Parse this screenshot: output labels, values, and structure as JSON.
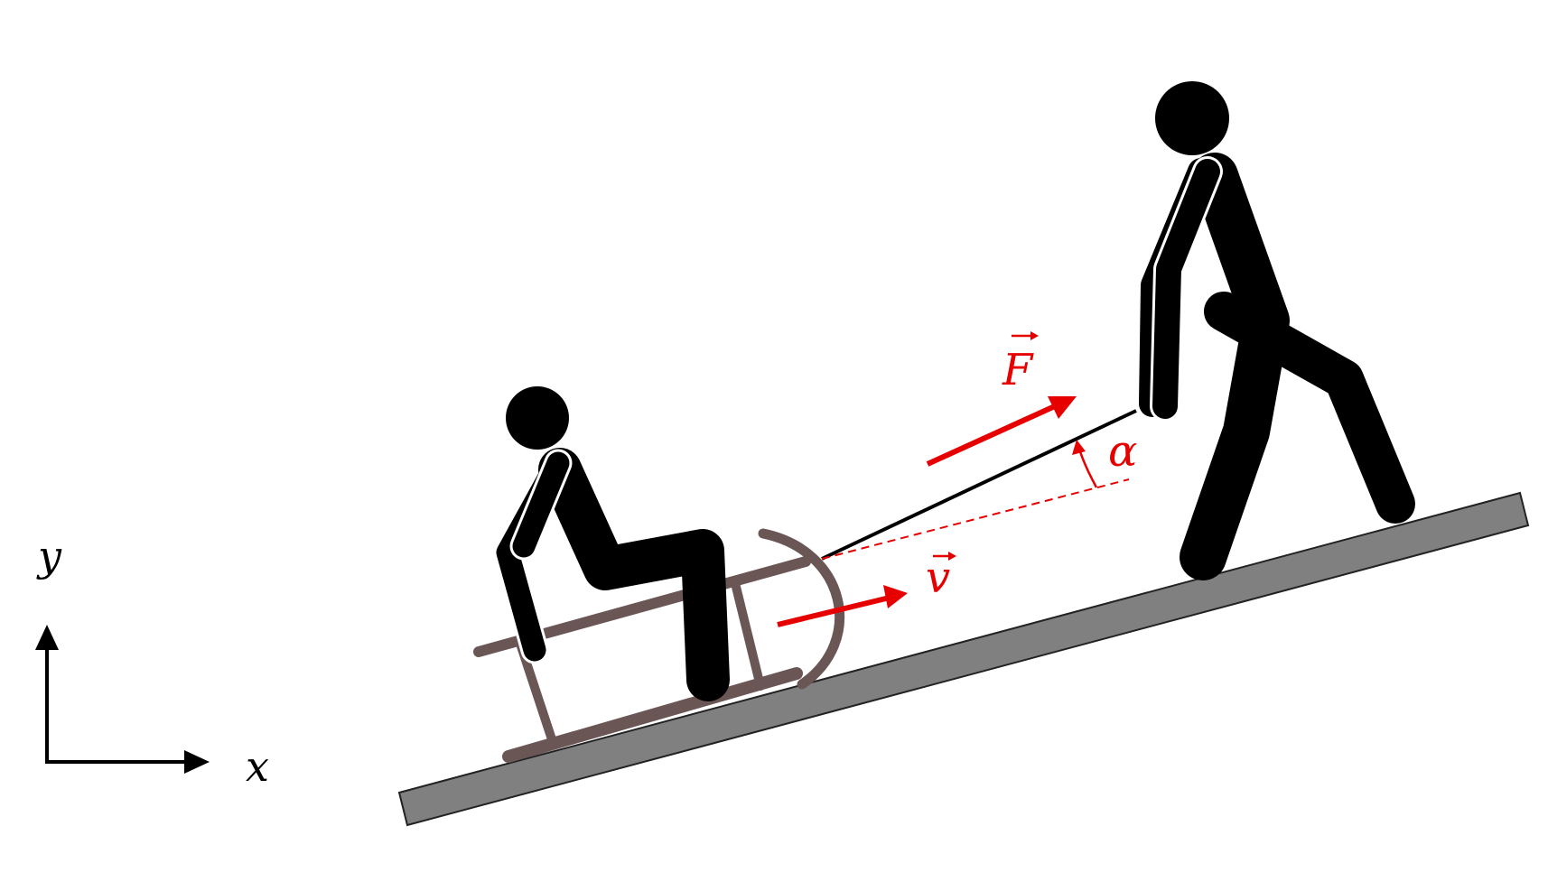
{
  "axes": {
    "x_label": "x",
    "y_label": "y"
  },
  "vectors": {
    "force_label": "F",
    "velocity_label": "v",
    "angle_label": "α"
  },
  "colors": {
    "vector_red": "#e60000",
    "ground": "#808080",
    "sled": "#6b5656",
    "figure": "#000000"
  }
}
